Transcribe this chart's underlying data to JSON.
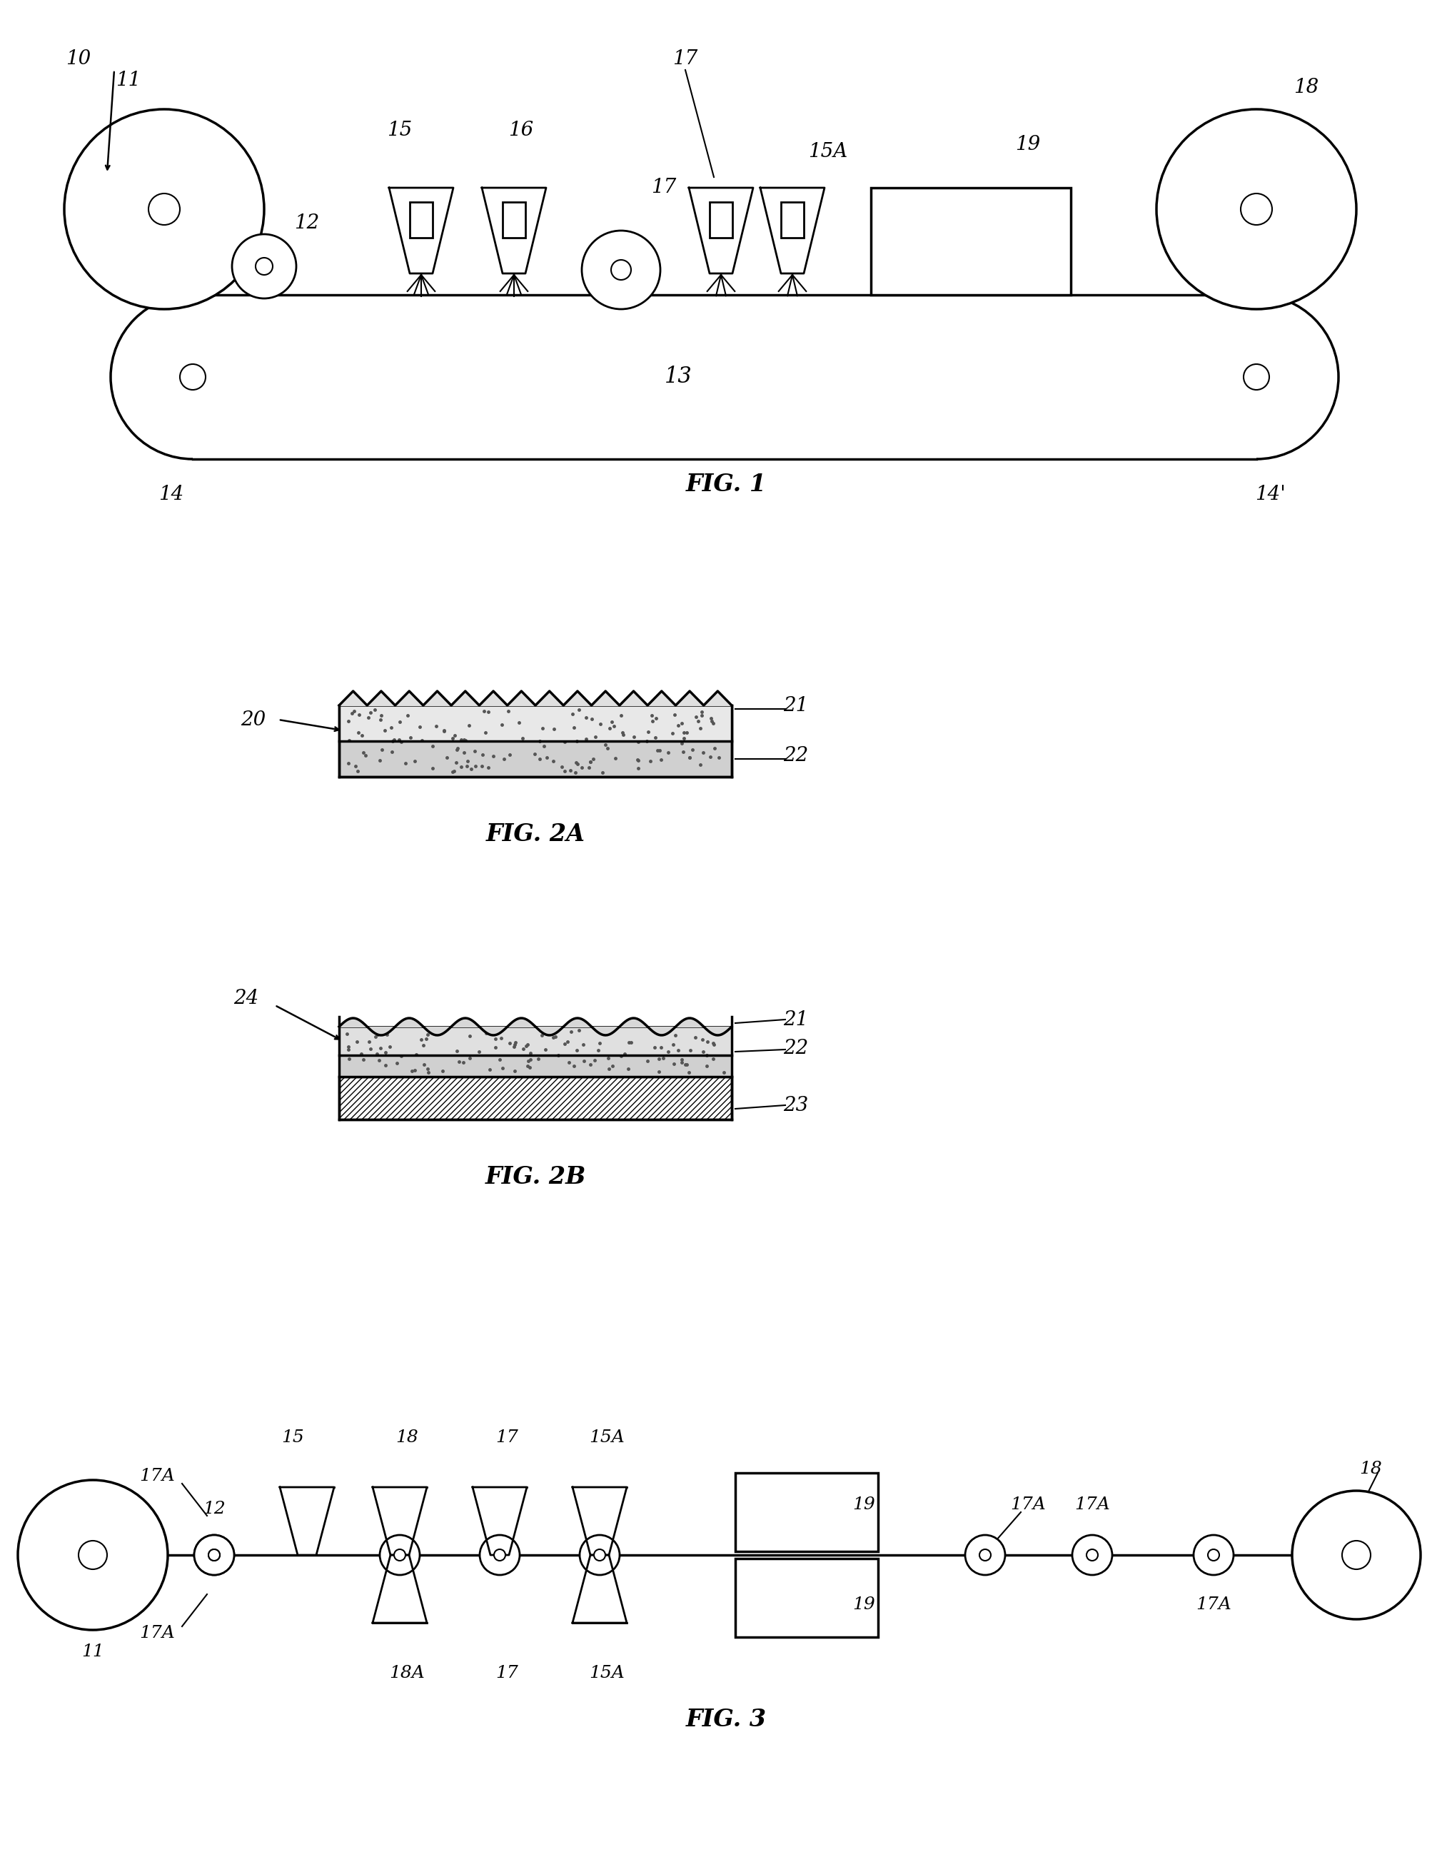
{
  "bg_color": "#ffffff",
  "line_color": "#000000",
  "fig1_label": "FIG. 1",
  "fig2a_label": "FIG. 2A",
  "fig2b_label": "FIG. 2B",
  "fig3_label": "FIG. 3",
  "font_size_label": 22,
  "font_size_number": 18,
  "font_style": "italic"
}
